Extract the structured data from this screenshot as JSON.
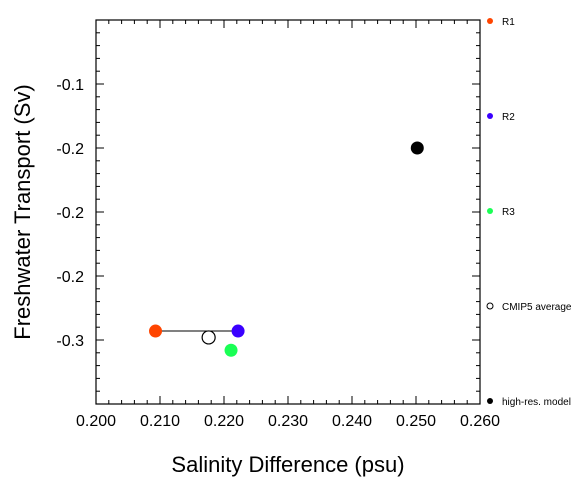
{
  "chart_data": {
    "type": "scatter",
    "xlabel": "Salinity Difference (psu)",
    "ylabel": "Freshwater Transport (Sv)",
    "xlim": [
      0.2,
      0.26
    ],
    "ylim": [
      -0.35,
      -0.05
    ],
    "x_tick_labels": [
      {
        "value": 0.2,
        "label": "0.200"
      },
      {
        "value": 0.21,
        "label": "0.210"
      },
      {
        "value": 0.22,
        "label": "0.220"
      },
      {
        "value": 0.23,
        "label": "0.230"
      },
      {
        "value": 0.24,
        "label": "0.240"
      },
      {
        "value": 0.25,
        "label": "0.250"
      },
      {
        "value": 0.26,
        "label": "0.260"
      }
    ],
    "y_tick_labels": [
      {
        "value": -0.1,
        "label": "-0.1"
      },
      {
        "value": -0.15,
        "label": "-0.2"
      },
      {
        "value": -0.2,
        "label": "-0.2"
      },
      {
        "value": -0.25,
        "label": "-0.2"
      },
      {
        "value": -0.3,
        "label": "-0.3"
      }
    ],
    "series": [
      {
        "name": "R1",
        "color": "#ff4500",
        "marker": "filled-circle",
        "x": [
          0.2093
        ],
        "y": [
          -0.293
        ]
      },
      {
        "name": "R2",
        "color": "#3a00ff",
        "marker": "filled-circle",
        "x": [
          0.2222
        ],
        "y": [
          -0.293
        ]
      },
      {
        "name": "R3",
        "color": "#1aff55",
        "marker": "filled-circle",
        "x": [
          0.2211
        ],
        "y": [
          -0.308
        ]
      },
      {
        "name": "CMIP5 average",
        "color": "#000000",
        "marker": "open-circle",
        "x": [
          0.2176
        ],
        "y": [
          -0.298
        ]
      },
      {
        "name": "high-res. model",
        "color": "#000000",
        "marker": "filled-circle",
        "x": [
          0.2502
        ],
        "y": [
          -0.15
        ]
      }
    ],
    "connector": {
      "from": "R1",
      "to": "R2",
      "via": "CMIP5 average",
      "color": "#000000"
    },
    "legend_position": "right",
    "grid": false
  }
}
